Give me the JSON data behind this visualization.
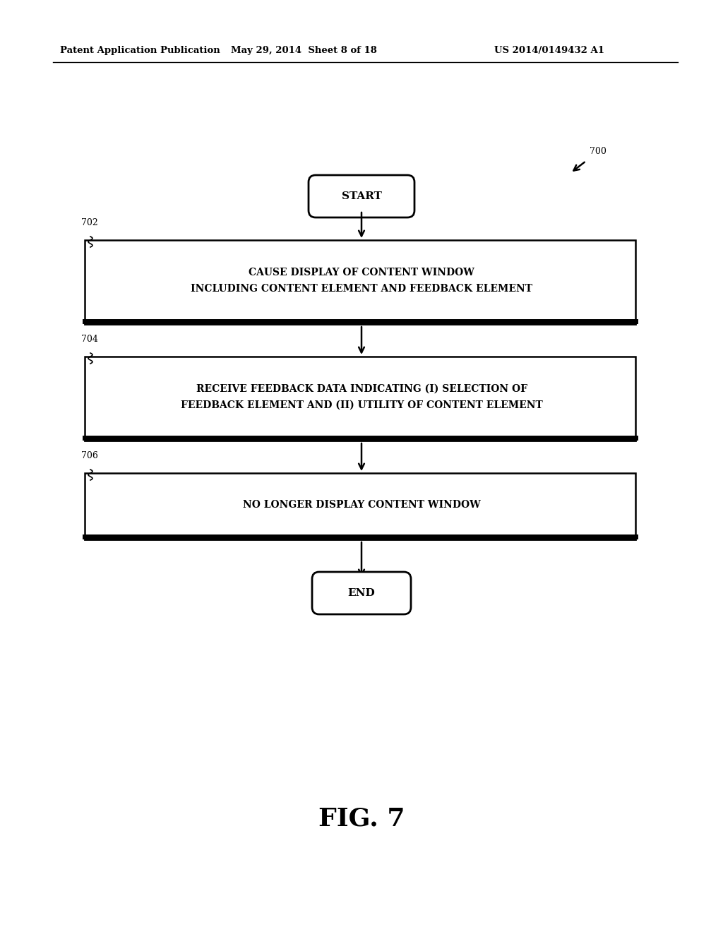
{
  "bg_color": "#ffffff",
  "header_left": "Patent Application Publication",
  "header_mid": "May 29, 2014  Sheet 8 of 18",
  "header_right": "US 2014/0149432 A1",
  "fig_label": "FIG. 7",
  "diagram_ref": "700",
  "start_label": "START",
  "end_label": "END",
  "boxes": [
    {
      "id": "702",
      "label": "CAUSE DISPLAY OF CONTENT WINDOW\nINCLUDING CONTENT ELEMENT AND FEEDBACK ELEMENT",
      "ref_label": "702"
    },
    {
      "id": "704",
      "label": "RECEIVE FEEDBACK DATA INDICATING (I) SELECTION OF\nFEEDBACK ELEMENT AND (II) UTILITY OF CONTENT ELEMENT",
      "ref_label": "704"
    },
    {
      "id": "706",
      "label": "NO LONGER DISPLAY CONTENT WINDOW",
      "ref_label": "706"
    }
  ],
  "text_fontsize": 10,
  "ref_fontsize": 9,
  "header_fontsize": 9.5
}
